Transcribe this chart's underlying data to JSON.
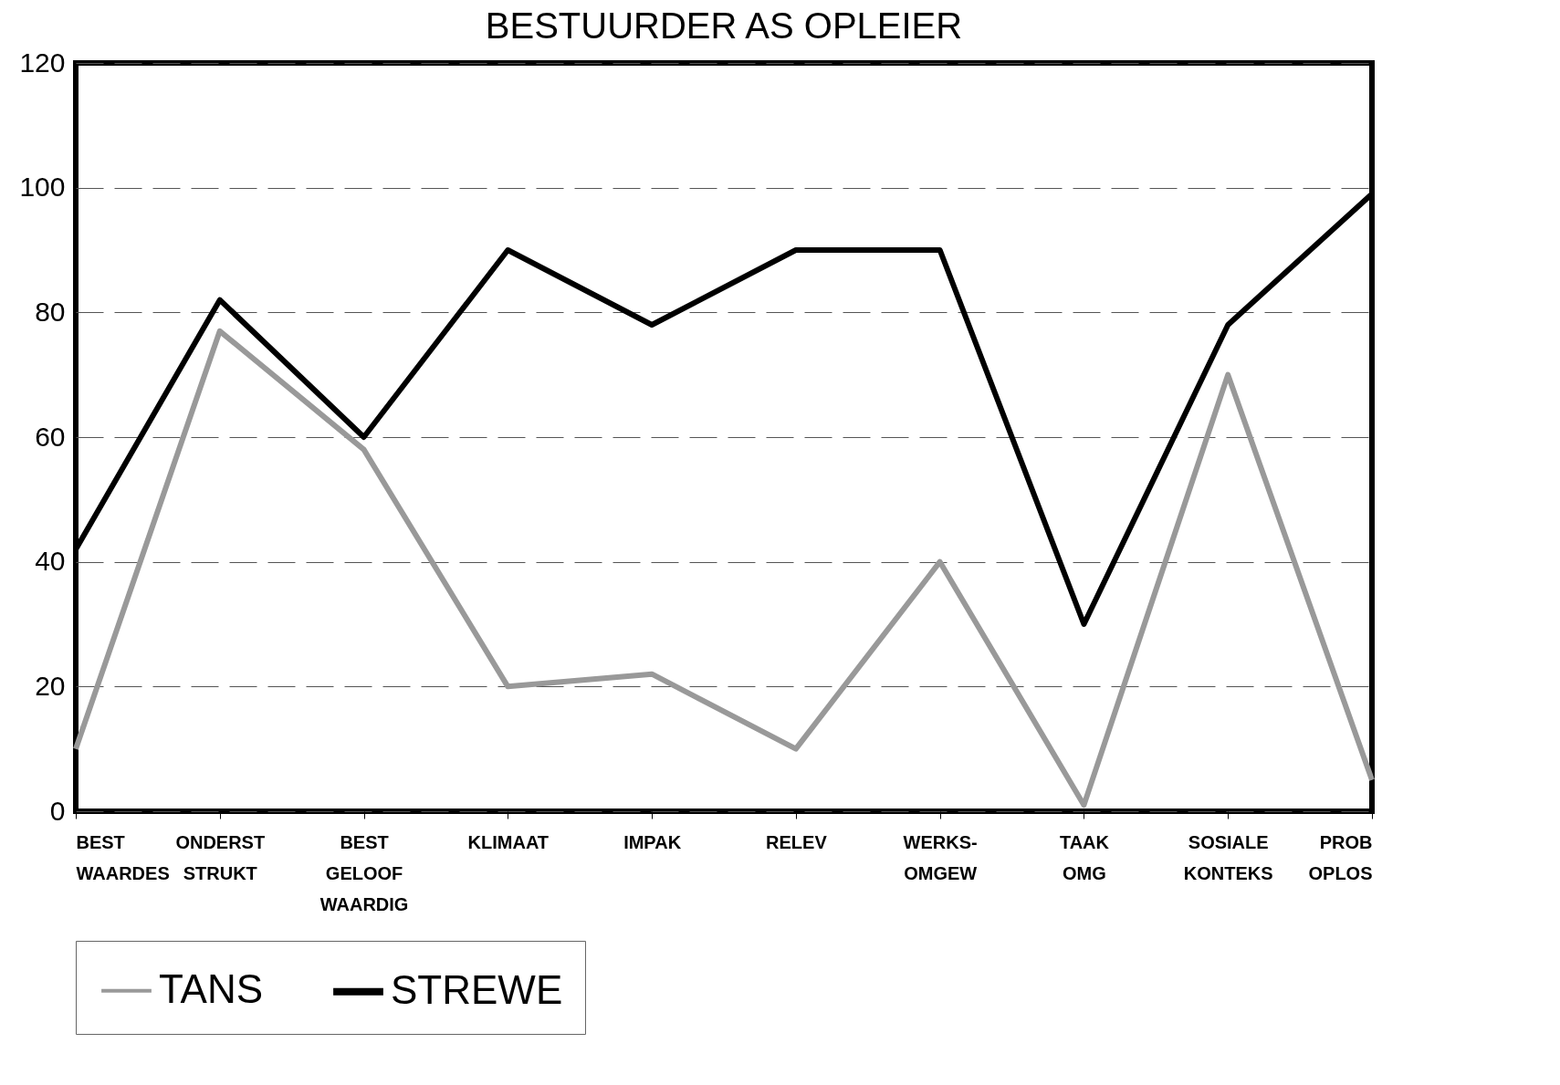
{
  "chart_data": {
    "type": "line",
    "title": "BESTUURDER AS OPLEIER",
    "categories": [
      "BEST WAARDES",
      "ONDERST STRUKT",
      "BEST GELOOF WAARDIG",
      "KLIMAAT",
      "IMPAK",
      "RELEV",
      "WERKS- OMGEW",
      "TAAK OMG",
      "SOSIALE KONTEKS",
      "PROB OPLOS"
    ],
    "series": [
      {
        "name": "TANS",
        "color": "#999999",
        "values": [
          10,
          77,
          58,
          20,
          22,
          10,
          40,
          1,
          70,
          5
        ]
      },
      {
        "name": "STREWE",
        "color": "#000000",
        "values": [
          42,
          82,
          60,
          90,
          78,
          90,
          90,
          30,
          78,
          99
        ]
      }
    ],
    "ylim": [
      0,
      120
    ],
    "yticks": [
      0,
      20,
      40,
      60,
      80,
      100,
      120
    ],
    "grid": "y",
    "legend": "bottom",
    "line_style": "solid",
    "marker": "none"
  }
}
